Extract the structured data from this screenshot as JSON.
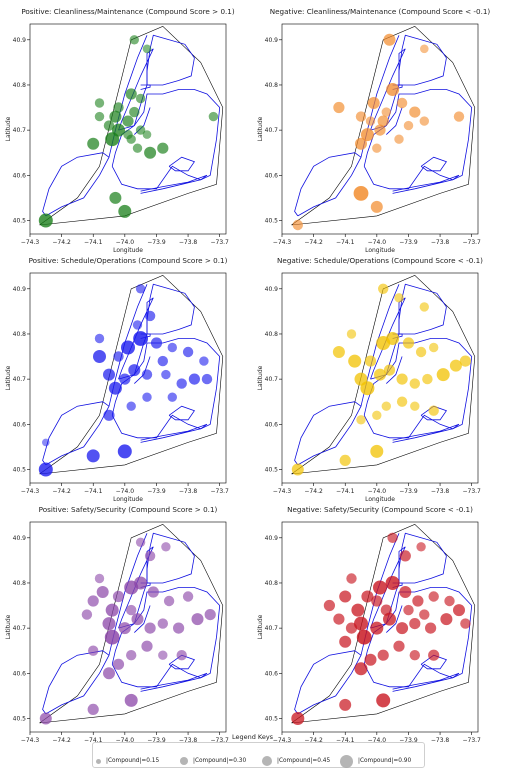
{
  "figure": {
    "panels": [
      {
        "title": "Positive: Cleanliness/Maintenance (Compound Score > 0.1)",
        "color": "#1a7f1a",
        "points": [
          [
            -74.25,
            40.5,
            0.55
          ],
          [
            -74.0,
            40.52,
            0.5
          ],
          [
            -74.03,
            40.55,
            0.45
          ],
          [
            -73.97,
            40.9,
            0.3
          ],
          [
            -73.93,
            40.88,
            0.25
          ],
          [
            -74.08,
            40.76,
            0.3
          ],
          [
            -74.02,
            40.75,
            0.35
          ],
          [
            -73.98,
            40.78,
            0.4
          ],
          [
            -73.95,
            40.77,
            0.3
          ],
          [
            -74.05,
            40.71,
            0.35
          ],
          [
            -74.03,
            40.73,
            0.45
          ],
          [
            -74.02,
            40.7,
            0.5
          ],
          [
            -73.99,
            40.72,
            0.4
          ],
          [
            -73.97,
            40.74,
            0.35
          ],
          [
            -73.95,
            40.7,
            0.3
          ],
          [
            -73.93,
            40.69,
            0.25
          ],
          [
            -73.98,
            40.68,
            0.3
          ],
          [
            -73.96,
            40.66,
            0.3
          ],
          [
            -73.92,
            40.65,
            0.45
          ],
          [
            -73.88,
            40.66,
            0.4
          ],
          [
            -73.72,
            40.73,
            0.3
          ],
          [
            -74.1,
            40.67,
            0.45
          ],
          [
            -74.04,
            40.68,
            0.55
          ],
          [
            -73.99,
            40.69,
            0.3
          ],
          [
            -74.08,
            40.73,
            0.3
          ]
        ]
      },
      {
        "title": "Negative: Cleanliness/Maintenance (Compound Score < -0.1)",
        "color": "#f28a2a",
        "points": [
          [
            -74.25,
            40.49,
            0.35
          ],
          [
            -74.0,
            40.53,
            0.45
          ],
          [
            -74.05,
            40.56,
            0.6
          ],
          [
            -73.96,
            40.9,
            0.45
          ],
          [
            -73.85,
            40.88,
            0.25
          ],
          [
            -74.12,
            40.75,
            0.4
          ],
          [
            -74.05,
            40.73,
            0.35
          ],
          [
            -74.01,
            40.76,
            0.45
          ],
          [
            -73.98,
            40.72,
            0.4
          ],
          [
            -73.95,
            40.79,
            0.5
          ],
          [
            -73.92,
            40.76,
            0.35
          ],
          [
            -73.88,
            40.74,
            0.4
          ],
          [
            -73.97,
            40.74,
            0.3
          ],
          [
            -74.03,
            40.69,
            0.5
          ],
          [
            -74.05,
            40.67,
            0.45
          ],
          [
            -73.99,
            40.7,
            0.4
          ],
          [
            -73.9,
            40.71,
            0.3
          ],
          [
            -73.85,
            40.72,
            0.3
          ],
          [
            -73.74,
            40.73,
            0.35
          ],
          [
            -74.02,
            40.72,
            0.3
          ],
          [
            -73.93,
            40.68,
            0.3
          ],
          [
            -74.0,
            40.66,
            0.3
          ]
        ]
      },
      {
        "title": "Positive: Schedule/Operations (Compound Score > 0.1)",
        "color": "#1a1aee",
        "points": [
          [
            -74.25,
            40.5,
            0.55
          ],
          [
            -74.25,
            40.56,
            0.2
          ],
          [
            -74.1,
            40.53,
            0.5
          ],
          [
            -74.0,
            40.54,
            0.55
          ],
          [
            -74.05,
            40.62,
            0.4
          ],
          [
            -73.95,
            40.9,
            0.3
          ],
          [
            -73.92,
            40.84,
            0.35
          ],
          [
            -73.96,
            40.82,
            0.3
          ],
          [
            -74.08,
            40.75,
            0.5
          ],
          [
            -74.02,
            40.75,
            0.35
          ],
          [
            -73.99,
            40.77,
            0.55
          ],
          [
            -73.95,
            40.79,
            0.6
          ],
          [
            -73.9,
            40.78,
            0.4
          ],
          [
            -73.88,
            40.74,
            0.35
          ],
          [
            -73.85,
            40.77,
            0.3
          ],
          [
            -73.8,
            40.76,
            0.35
          ],
          [
            -74.05,
            40.71,
            0.45
          ],
          [
            -74.03,
            40.68,
            0.5
          ],
          [
            -74.0,
            40.7,
            0.4
          ],
          [
            -73.97,
            40.72,
            0.45
          ],
          [
            -73.93,
            40.71,
            0.35
          ],
          [
            -73.87,
            40.71,
            0.3
          ],
          [
            -73.82,
            40.69,
            0.35
          ],
          [
            -73.78,
            40.7,
            0.4
          ],
          [
            -73.75,
            40.74,
            0.3
          ],
          [
            -73.74,
            40.7,
            0.35
          ],
          [
            -73.93,
            40.66,
            0.3
          ],
          [
            -73.98,
            40.64,
            0.3
          ],
          [
            -74.08,
            40.79,
            0.3
          ],
          [
            -73.85,
            40.66,
            0.3
          ]
        ]
      },
      {
        "title": "Negative: Schedule/Operations (Compound Score < -0.1)",
        "color": "#f2c200",
        "points": [
          [
            -74.25,
            40.5,
            0.45
          ],
          [
            -74.1,
            40.52,
            0.4
          ],
          [
            -74.0,
            40.54,
            0.5
          ],
          [
            -74.05,
            40.61,
            0.3
          ],
          [
            -73.98,
            40.9,
            0.35
          ],
          [
            -73.93,
            40.88,
            0.3
          ],
          [
            -73.85,
            40.86,
            0.3
          ],
          [
            -74.12,
            40.76,
            0.45
          ],
          [
            -74.07,
            40.74,
            0.5
          ],
          [
            -74.02,
            40.74,
            0.4
          ],
          [
            -73.98,
            40.78,
            0.55
          ],
          [
            -73.95,
            40.79,
            0.5
          ],
          [
            -73.9,
            40.78,
            0.4
          ],
          [
            -73.86,
            40.76,
            0.35
          ],
          [
            -73.82,
            40.77,
            0.3
          ],
          [
            -74.05,
            40.7,
            0.5
          ],
          [
            -74.03,
            40.68,
            0.55
          ],
          [
            -73.99,
            40.71,
            0.45
          ],
          [
            -73.96,
            40.72,
            0.4
          ],
          [
            -73.92,
            40.7,
            0.4
          ],
          [
            -73.88,
            40.69,
            0.35
          ],
          [
            -73.84,
            40.7,
            0.35
          ],
          [
            -73.79,
            40.71,
            0.5
          ],
          [
            -73.75,
            40.73,
            0.45
          ],
          [
            -73.72,
            40.74,
            0.4
          ],
          [
            -73.92,
            40.65,
            0.35
          ],
          [
            -73.97,
            40.64,
            0.3
          ],
          [
            -74.08,
            40.8,
            0.3
          ],
          [
            -73.88,
            40.64,
            0.3
          ],
          [
            -73.82,
            40.63,
            0.35
          ],
          [
            -74.0,
            40.62,
            0.3
          ]
        ]
      },
      {
        "title": "Positive: Safety/Security (Compound Score > 0.1)",
        "color": "#8b46a8",
        "points": [
          [
            -74.25,
            40.5,
            0.45
          ],
          [
            -74.1,
            40.52,
            0.4
          ],
          [
            -73.98,
            40.54,
            0.5
          ],
          [
            -74.05,
            40.6,
            0.45
          ],
          [
            -73.95,
            40.89,
            0.3
          ],
          [
            -73.92,
            40.86,
            0.35
          ],
          [
            -73.87,
            40.88,
            0.3
          ],
          [
            -74.1,
            40.76,
            0.4
          ],
          [
            -74.07,
            40.78,
            0.45
          ],
          [
            -74.04,
            40.74,
            0.5
          ],
          [
            -74.02,
            40.77,
            0.4
          ],
          [
            -73.98,
            40.79,
            0.55
          ],
          [
            -73.95,
            40.8,
            0.5
          ],
          [
            -73.91,
            40.78,
            0.4
          ],
          [
            -73.86,
            40.76,
            0.35
          ],
          [
            -73.8,
            40.77,
            0.35
          ],
          [
            -74.05,
            40.71,
            0.5
          ],
          [
            -74.04,
            40.68,
            0.6
          ],
          [
            -74.0,
            40.7,
            0.45
          ],
          [
            -73.96,
            40.72,
            0.45
          ],
          [
            -73.92,
            40.7,
            0.4
          ],
          [
            -73.88,
            40.71,
            0.35
          ],
          [
            -73.83,
            40.7,
            0.4
          ],
          [
            -73.77,
            40.72,
            0.45
          ],
          [
            -73.73,
            40.73,
            0.4
          ],
          [
            -73.93,
            40.66,
            0.4
          ],
          [
            -73.98,
            40.64,
            0.35
          ],
          [
            -74.12,
            40.73,
            0.35
          ],
          [
            -74.08,
            40.81,
            0.3
          ],
          [
            -73.88,
            40.64,
            0.3
          ],
          [
            -73.82,
            40.64,
            0.35
          ],
          [
            -74.02,
            40.62,
            0.4
          ],
          [
            -74.1,
            40.65,
            0.35
          ],
          [
            -73.98,
            40.74,
            0.35
          ]
        ]
      },
      {
        "title": "Negative: Safety/Security (Compound Score < -0.1)",
        "color": "#c8141e",
        "points": [
          [
            -74.25,
            40.5,
            0.5
          ],
          [
            -74.1,
            40.53,
            0.45
          ],
          [
            -73.98,
            40.54,
            0.55
          ],
          [
            -74.05,
            40.61,
            0.5
          ],
          [
            -74.1,
            40.67,
            0.45
          ],
          [
            -73.95,
            40.9,
            0.35
          ],
          [
            -73.91,
            40.86,
            0.4
          ],
          [
            -73.86,
            40.88,
            0.3
          ],
          [
            -74.15,
            40.75,
            0.4
          ],
          [
            -74.1,
            40.77,
            0.45
          ],
          [
            -74.06,
            40.74,
            0.5
          ],
          [
            -74.03,
            40.77,
            0.45
          ],
          [
            -73.99,
            40.79,
            0.55
          ],
          [
            -73.95,
            40.8,
            0.55
          ],
          [
            -73.91,
            40.78,
            0.45
          ],
          [
            -73.87,
            40.76,
            0.4
          ],
          [
            -73.82,
            40.77,
            0.35
          ],
          [
            -73.77,
            40.76,
            0.35
          ],
          [
            -74.05,
            40.71,
            0.55
          ],
          [
            -74.04,
            40.68,
            0.6
          ],
          [
            -74.0,
            40.7,
            0.5
          ],
          [
            -73.96,
            40.72,
            0.5
          ],
          [
            -73.92,
            40.7,
            0.45
          ],
          [
            -73.88,
            40.71,
            0.4
          ],
          [
            -73.83,
            40.7,
            0.4
          ],
          [
            -73.78,
            40.72,
            0.45
          ],
          [
            -73.74,
            40.74,
            0.45
          ],
          [
            -73.72,
            40.71,
            0.35
          ],
          [
            -73.93,
            40.66,
            0.4
          ],
          [
            -73.98,
            40.64,
            0.4
          ],
          [
            -74.12,
            40.72,
            0.4
          ],
          [
            -74.08,
            40.81,
            0.35
          ],
          [
            -73.88,
            40.64,
            0.35
          ],
          [
            -73.82,
            40.64,
            0.4
          ],
          [
            -74.02,
            40.63,
            0.45
          ],
          [
            -73.97,
            40.74,
            0.4
          ],
          [
            -74.0,
            40.76,
            0.4
          ],
          [
            -73.9,
            40.74,
            0.35
          ],
          [
            -73.85,
            40.73,
            0.35
          ],
          [
            -74.08,
            40.7,
            0.4
          ]
        ]
      }
    ],
    "x_ticks": [
      -74.3,
      -74.2,
      -74.1,
      -74.0,
      -73.9,
      -73.8,
      -73.7
    ],
    "x_tick_labels": [
      "−74.3",
      "−74.2",
      "−74.1",
      "−74.0",
      "−73.9",
      "−73.8",
      "−73.7"
    ],
    "y_ticks": [
      40.5,
      40.6,
      40.7,
      40.8,
      40.9
    ],
    "y_tick_labels": [
      "40.5",
      "40.6",
      "40.7",
      "40.8",
      "40.9"
    ],
    "x_label": "Longitude",
    "y_label": "Latitude",
    "xlim": [
      -74.3,
      -73.68
    ],
    "ylim": [
      40.47,
      40.935
    ],
    "map_line_color": "#1010e0",
    "hull_color": "#000000"
  },
  "legend": {
    "title": "Legend Keys",
    "items": [
      {
        "label": "|Compound|=0.15",
        "value": 0.15
      },
      {
        "label": "|Compound|=0.30",
        "value": 0.3
      },
      {
        "label": "|Compound|=0.45",
        "value": 0.45
      },
      {
        "label": "|Compound|=0.90",
        "value": 0.9
      }
    ]
  },
  "chart_data": {
    "type": "scatter",
    "xlabel": "Longitude",
    "ylabel": "Latitude",
    "xlim": [
      -74.3,
      -73.68
    ],
    "ylim": [
      40.47,
      40.935
    ],
    "grid": false,
    "legend_position": "bottom-center",
    "series": [
      {
        "name": "Positive: Cleanliness/Maintenance (Compound Score > 0.1)"
      },
      {
        "name": "Negative: Cleanliness/Maintenance (Compound Score < -0.1)"
      },
      {
        "name": "Positive: Schedule/Operations (Compound Score > 0.1)"
      },
      {
        "name": "Negative: Schedule/Operations (Compound Score < -0.1)"
      },
      {
        "name": "Positive: Safety/Security (Compound Score > 0.1)"
      },
      {
        "name": "Negative: Safety/Security (Compound Score < -0.1)"
      }
    ]
  }
}
